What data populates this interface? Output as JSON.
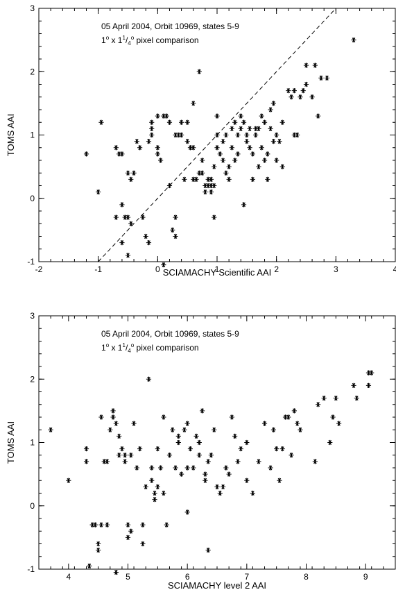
{
  "chart_data": [
    {
      "type": "scatter",
      "title": "",
      "annotation_line1": "05 April 2004, Orbit 10969, states 5-9",
      "annotation_line2_prefix": "1",
      "annotation_line2_mid": " x 1",
      "annotation_frac_num": "1",
      "annotation_frac_slash": "/",
      "annotation_frac_den": "4",
      "annotation_deg": "o",
      "annotation_line2_suffix": " pixel comparison",
      "xlabel": "SCIAMACHY Scientific AAI",
      "ylabel": "TOMS AAI",
      "xlim": [
        -2,
        4
      ],
      "ylim": [
        -1,
        3
      ],
      "xticks": [
        -2,
        -1,
        0,
        1,
        2,
        3,
        4
      ],
      "yticks": [
        -1,
        0,
        1,
        2,
        3
      ],
      "xticklabels": [
        "-2",
        "-1",
        "0",
        "1",
        "2",
        "3",
        "4"
      ],
      "yticklabels": [
        "-1",
        "0",
        "1",
        "2",
        "3"
      ],
      "grid": false,
      "marker": "asterisk",
      "reference_line": {
        "slope": 1,
        "intercept": 0,
        "style": "dashed"
      },
      "points": [
        [
          -1.2,
          0.7
        ],
        [
          -1.0,
          0.1
        ],
        [
          -0.95,
          1.2
        ],
        [
          -0.7,
          0.8
        ],
        [
          -0.65,
          0.7
        ],
        [
          -0.6,
          0.7
        ],
        [
          -0.7,
          -0.3
        ],
        [
          -0.6,
          -0.1
        ],
        [
          -0.55,
          -0.3
        ],
        [
          -0.5,
          -0.3
        ],
        [
          -0.45,
          -0.4
        ],
        [
          -0.5,
          0.4
        ],
        [
          -0.45,
          0.3
        ],
        [
          -0.4,
          0.4
        ],
        [
          -0.6,
          -0.7
        ],
        [
          -0.5,
          -0.9
        ],
        [
          -0.35,
          0.9
        ],
        [
          -0.3,
          0.8
        ],
        [
          -0.25,
          -0.3
        ],
        [
          -0.2,
          -0.6
        ],
        [
          -0.15,
          -0.7
        ],
        [
          -0.15,
          0.9
        ],
        [
          -0.1,
          1.1
        ],
        [
          -0.1,
          1.2
        ],
        [
          -0.1,
          1.0
        ],
        [
          0.0,
          1.3
        ],
        [
          0.0,
          0.8
        ],
        [
          0.0,
          0.7
        ],
        [
          0.05,
          0.6
        ],
        [
          0.1,
          1.3
        ],
        [
          0.15,
          1.3
        ],
        [
          0.2,
          1.2
        ],
        [
          0.1,
          -1.05
        ],
        [
          0.2,
          0.2
        ],
        [
          0.25,
          -0.5
        ],
        [
          0.3,
          -0.3
        ],
        [
          0.3,
          -0.6
        ],
        [
          0.3,
          1.0
        ],
        [
          0.35,
          1.0
        ],
        [
          0.4,
          1.0
        ],
        [
          0.4,
          1.2
        ],
        [
          0.45,
          0.3
        ],
        [
          0.5,
          0.9
        ],
        [
          0.5,
          1.2
        ],
        [
          0.55,
          0.8
        ],
        [
          0.6,
          0.8
        ],
        [
          0.6,
          1.5
        ],
        [
          0.6,
          0.3
        ],
        [
          0.65,
          0.3
        ],
        [
          0.7,
          0.4
        ],
        [
          0.7,
          2.0
        ],
        [
          0.75,
          0.4
        ],
        [
          0.75,
          0.6
        ],
        [
          0.8,
          0.2
        ],
        [
          0.8,
          0.1
        ],
        [
          0.85,
          0.2
        ],
        [
          0.85,
          0.3
        ],
        [
          0.9,
          0.1
        ],
        [
          0.9,
          0.2
        ],
        [
          0.9,
          0.3
        ],
        [
          0.95,
          0.2
        ],
        [
          0.95,
          -0.3
        ],
        [
          0.95,
          0.5
        ],
        [
          1.0,
          1.0
        ],
        [
          1.0,
          0.8
        ],
        [
          1.0,
          1.3
        ],
        [
          1.05,
          0.7
        ],
        [
          1.1,
          0.6
        ],
        [
          1.1,
          0.9
        ],
        [
          1.15,
          1.0
        ],
        [
          1.15,
          0.4
        ],
        [
          1.2,
          0.3
        ],
        [
          1.2,
          0.5
        ],
        [
          1.25,
          0.8
        ],
        [
          1.25,
          1.1
        ],
        [
          1.3,
          1.2
        ],
        [
          1.3,
          0.6
        ],
        [
          1.35,
          0.7
        ],
        [
          1.35,
          1.0
        ],
        [
          1.4,
          1.1
        ],
        [
          1.4,
          1.3
        ],
        [
          1.45,
          -0.1
        ],
        [
          1.45,
          1.2
        ],
        [
          1.5,
          1.0
        ],
        [
          1.5,
          0.9
        ],
        [
          1.55,
          0.8
        ],
        [
          1.55,
          1.1
        ],
        [
          1.6,
          0.3
        ],
        [
          1.6,
          0.7
        ],
        [
          1.65,
          1.0
        ],
        [
          1.65,
          1.1
        ],
        [
          1.7,
          0.5
        ],
        [
          1.7,
          1.1
        ],
        [
          1.75,
          1.3
        ],
        [
          1.75,
          0.8
        ],
        [
          1.8,
          0.6
        ],
        [
          1.8,
          1.2
        ],
        [
          1.85,
          0.7
        ],
        [
          1.85,
          0.3
        ],
        [
          1.9,
          1.1
        ],
        [
          1.9,
          1.4
        ],
        [
          1.95,
          1.5
        ],
        [
          1.95,
          0.9
        ],
        [
          2.0,
          1.0
        ],
        [
          2.0,
          0.6
        ],
        [
          2.05,
          0.9
        ],
        [
          2.1,
          0.5
        ],
        [
          2.1,
          1.2
        ],
        [
          2.2,
          1.7
        ],
        [
          2.25,
          1.6
        ],
        [
          2.3,
          1.7
        ],
        [
          2.35,
          1.0
        ],
        [
          2.4,
          1.6
        ],
        [
          2.45,
          1.7
        ],
        [
          2.5,
          2.1
        ],
        [
          2.5,
          1.8
        ],
        [
          2.6,
          1.6
        ],
        [
          2.65,
          2.1
        ],
        [
          2.7,
          1.3
        ],
        [
          2.75,
          1.9
        ],
        [
          2.85,
          1.9
        ],
        [
          2.3,
          1.0
        ],
        [
          3.3,
          2.5
        ]
      ]
    },
    {
      "type": "scatter",
      "title": "",
      "annotation_line1": "05 April 2004, Orbit 10969, states 5-9",
      "annotation_line2_prefix": "1",
      "annotation_line2_mid": " x 1",
      "annotation_frac_num": "1",
      "annotation_frac_slash": "/",
      "annotation_frac_den": "4",
      "annotation_deg": "o",
      "annotation_line2_suffix": " pixel comparison",
      "xlabel": "SCIAMACHY level 2 AAI",
      "ylabel": "TOMS AAI",
      "xlim": [
        3.5,
        9.5
      ],
      "ylim": [
        -1,
        3
      ],
      "xticks": [
        4,
        5,
        6,
        7,
        8,
        9
      ],
      "yticks": [
        -1,
        0,
        1,
        2,
        3
      ],
      "xticklabels": [
        "4",
        "5",
        "6",
        "7",
        "8",
        "9"
      ],
      "yticklabels": [
        "-1",
        "0",
        "1",
        "2",
        "3"
      ],
      "grid": false,
      "marker": "asterisk",
      "points": [
        [
          3.7,
          1.2
        ],
        [
          4.0,
          0.4
        ],
        [
          4.3,
          0.9
        ],
        [
          4.3,
          0.7
        ],
        [
          4.35,
          -0.95
        ],
        [
          4.4,
          -0.3
        ],
        [
          4.45,
          -0.3
        ],
        [
          4.5,
          -0.7
        ],
        [
          4.5,
          -0.6
        ],
        [
          4.55,
          -0.3
        ],
        [
          4.55,
          1.4
        ],
        [
          4.6,
          0.7
        ],
        [
          4.65,
          0.7
        ],
        [
          4.65,
          -0.3
        ],
        [
          4.7,
          1.2
        ],
        [
          4.75,
          1.4
        ],
        [
          4.75,
          1.5
        ],
        [
          4.8,
          1.3
        ],
        [
          4.8,
          -1.05
        ],
        [
          4.85,
          0.8
        ],
        [
          4.85,
          1.1
        ],
        [
          4.9,
          0.9
        ],
        [
          4.95,
          0.7
        ],
        [
          4.95,
          0.8
        ],
        [
          5.0,
          -0.5
        ],
        [
          5.0,
          -0.3
        ],
        [
          5.05,
          0.8
        ],
        [
          5.05,
          -0.4
        ],
        [
          5.1,
          1.3
        ],
        [
          5.15,
          0.6
        ],
        [
          5.2,
          0.9
        ],
        [
          5.25,
          -0.3
        ],
        [
          5.25,
          -0.6
        ],
        [
          5.3,
          0.3
        ],
        [
          5.35,
          2.0
        ],
        [
          5.4,
          0.4
        ],
        [
          5.4,
          0.6
        ],
        [
          5.45,
          0.1
        ],
        [
          5.45,
          0.2
        ],
        [
          5.5,
          0.9
        ],
        [
          5.5,
          0.3
        ],
        [
          5.55,
          0.6
        ],
        [
          5.6,
          1.4
        ],
        [
          5.6,
          0.2
        ],
        [
          5.65,
          -0.3
        ],
        [
          5.7,
          0.8
        ],
        [
          5.75,
          1.2
        ],
        [
          5.8,
          0.6
        ],
        [
          5.85,
          1.0
        ],
        [
          5.85,
          1.1
        ],
        [
          5.9,
          0.5
        ],
        [
          5.95,
          1.2
        ],
        [
          6.0,
          1.3
        ],
        [
          6.0,
          -0.1
        ],
        [
          6.0,
          0.6
        ],
        [
          6.05,
          0.9
        ],
        [
          6.1,
          0.6
        ],
        [
          6.15,
          1.1
        ],
        [
          6.2,
          1.0
        ],
        [
          6.2,
          0.8
        ],
        [
          6.25,
          1.5
        ],
        [
          6.3,
          0.5
        ],
        [
          6.3,
          0.4
        ],
        [
          6.35,
          -0.7
        ],
        [
          6.35,
          0.7
        ],
        [
          6.4,
          0.8
        ],
        [
          6.45,
          1.2
        ],
        [
          6.5,
          0.3
        ],
        [
          6.55,
          0.2
        ],
        [
          6.6,
          0.3
        ],
        [
          6.65,
          0.6
        ],
        [
          6.7,
          0.5
        ],
        [
          6.75,
          1.4
        ],
        [
          6.8,
          1.1
        ],
        [
          6.85,
          0.7
        ],
        [
          6.9,
          0.9
        ],
        [
          7.0,
          0.4
        ],
        [
          7.0,
          1.0
        ],
        [
          7.1,
          0.2
        ],
        [
          7.2,
          0.7
        ],
        [
          7.3,
          1.3
        ],
        [
          7.4,
          0.6
        ],
        [
          7.45,
          1.2
        ],
        [
          7.5,
          0.9
        ],
        [
          7.55,
          0.4
        ],
        [
          7.6,
          0.9
        ],
        [
          7.65,
          1.4
        ],
        [
          7.7,
          1.4
        ],
        [
          7.75,
          0.8
        ],
        [
          7.8,
          1.5
        ],
        [
          7.85,
          1.3
        ],
        [
          7.9,
          1.2
        ],
        [
          8.15,
          0.7
        ],
        [
          8.2,
          1.6
        ],
        [
          8.3,
          1.7
        ],
        [
          8.4,
          1.0
        ],
        [
          8.45,
          1.4
        ],
        [
          8.5,
          1.7
        ],
        [
          8.55,
          1.3
        ],
        [
          8.8,
          1.9
        ],
        [
          8.85,
          1.7
        ],
        [
          9.05,
          2.1
        ],
        [
          9.05,
          1.9
        ],
        [
          9.1,
          2.1
        ]
      ]
    }
  ]
}
